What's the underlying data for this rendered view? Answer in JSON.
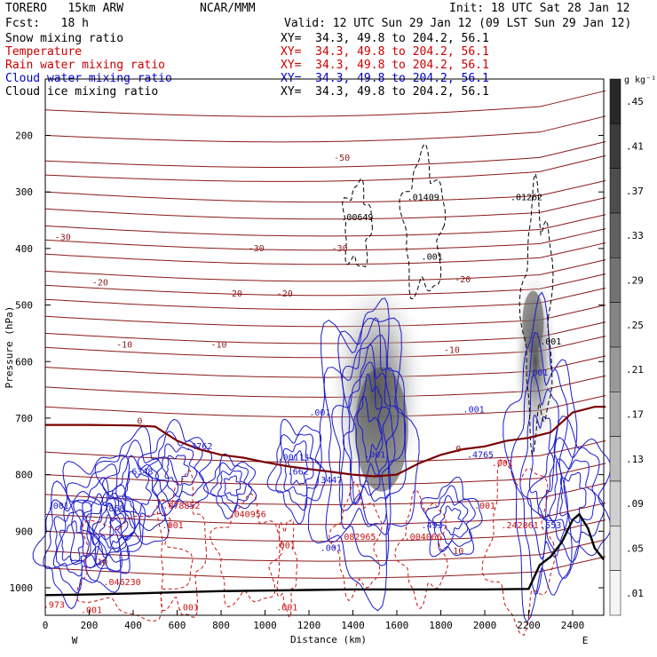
{
  "header": {
    "model": "TORERO   15km ARW",
    "center": "NCAR/MMM",
    "init": "Init: 18 UTC Sat 28 Jan 12",
    "fcst": "Fcst:   18 h",
    "valid": "Valid: 12 UTC Sun 29 Jan 12 (09 LST Sun 29 Jan 12)"
  },
  "legend": [
    {
      "name": "Snow mixing ratio",
      "xy": "XY=  34.3, 49.8 to 204.2, 56.1",
      "color": "#000000"
    },
    {
      "name": "Temperature",
      "xy": "XY=  34.3, 49.8 to 204.2, 56.1",
      "color": "#cc0000"
    },
    {
      "name": "Rain water mixing ratio",
      "xy": "XY=  34.3, 49.8 to 204.2, 56.1",
      "color": "#cc0000"
    },
    {
      "name": "Cloud water mixing ratio",
      "xy": "XY=  34.3, 49.8 to 204.2, 56.1",
      "color": "#0000cc"
    },
    {
      "name": "Cloud ice mixing ratio",
      "xy": "XY=  34.3, 49.8 to 204.2, 56.1",
      "color": "#000000"
    }
  ],
  "colorbar": {
    "unit": "g kg⁻¹",
    "levels": [
      ".45",
      ".41",
      ".37",
      ".33",
      ".29",
      ".25",
      ".21",
      ".17",
      ".13",
      ".09",
      ".05",
      ".01"
    ]
  },
  "chart_data": {
    "type": "contour",
    "xlabel": "Distance (km)",
    "ylabel": "Pressure (hPa)",
    "xlim": [
      0,
      2550
    ],
    "ylim": [
      1050,
      100
    ],
    "x_ticks": [
      0,
      200,
      400,
      600,
      800,
      1000,
      1200,
      1400,
      1600,
      1800,
      2000,
      2200,
      2400
    ],
    "y_ticks": [
      200,
      300,
      400,
      500,
      600,
      700,
      800,
      900,
      1000
    ],
    "x_end_labels": [
      "W",
      "E"
    ],
    "temperature_isotherms": [
      {
        "label": "-50",
        "x": 1350,
        "p": 245
      },
      {
        "label": "-30",
        "x": 80,
        "p": 385
      },
      {
        "label": "-30",
        "x": 960,
        "p": 405
      },
      {
        "label": "-30",
        "x": 1340,
        "p": 405
      },
      {
        "label": "-20",
        "x": 250,
        "p": 465
      },
      {
        "label": "-20",
        "x": 860,
        "p": 485
      },
      {
        "label": "-20",
        "x": 1090,
        "p": 485
      },
      {
        "label": "-20",
        "x": 1900,
        "p": 460
      },
      {
        "label": "-10",
        "x": 360,
        "p": 575
      },
      {
        "label": "-10",
        "x": 790,
        "p": 575
      },
      {
        "label": "-10",
        "x": 1850,
        "p": 585
      },
      {
        "label": "0",
        "x": 430,
        "p": 710
      },
      {
        "label": "0",
        "x": 1880,
        "p": 760
      },
      {
        "label": "10",
        "x": 260,
        "p": 960
      },
      {
        "label": "10",
        "x": 1880,
        "p": 940
      }
    ],
    "cloud_ice_maxima": [
      {
        "label": ".00649",
        "x": 1420,
        "p": 350
      },
      {
        "label": ".01409",
        "x": 1720,
        "p": 315
      },
      {
        "label": ".01262",
        "x": 2190,
        "p": 315
      },
      {
        "label": ".001",
        "x": 1760,
        "p": 420
      },
      {
        "label": ".001",
        "x": 2300,
        "p": 570
      }
    ],
    "cloud_water_maxima": [
      {
        "label": ".4762",
        "x": 700,
        "p": 755
      },
      {
        "label": ".00111",
        "x": 1130,
        "p": 775
      },
      {
        "label": ".662",
        "x": 1150,
        "p": 800
      },
      {
        "label": ".6348",
        "x": 430,
        "p": 800
      },
      {
        "label": ".3447",
        "x": 1290,
        "p": 815
      },
      {
        "label": ".4765",
        "x": 1980,
        "p": 770
      },
      {
        "label": ".553",
        "x": 2300,
        "p": 895
      },
      {
        "label": ".493",
        "x": 1760,
        "p": 895
      },
      {
        "label": ".7868",
        "x": 300,
        "p": 865
      },
      {
        "label": ".001",
        "x": 1250,
        "p": 695
      },
      {
        "label": ".001",
        "x": 1500,
        "p": 770
      },
      {
        "label": ".001",
        "x": 1950,
        "p": 690
      },
      {
        "label": ".001",
        "x": 2240,
        "p": 625
      },
      {
        "label": ".001",
        "x": 1300,
        "p": 935
      },
      {
        "label": ".001",
        "x": 60,
        "p": 860
      }
    ],
    "rain_water_maxima": [
      {
        "label": ".078852",
        "x": 620,
        "p": 860
      },
      {
        "label": ".040956",
        "x": 920,
        "p": 875
      },
      {
        "label": ".082965",
        "x": 1420,
        "p": 915
      },
      {
        "label": ".004066",
        "x": 1720,
        "p": 915
      },
      {
        "label": ".242861",
        "x": 2160,
        "p": 895
      },
      {
        "label": ".046230",
        "x": 350,
        "p": 995
      },
      {
        "label": ".001",
        "x": 2000,
        "p": 860
      },
      {
        "label": ".001",
        "x": 1090,
        "p": 930
      },
      {
        "label": ".001",
        "x": 580,
        "p": 895
      },
      {
        "label": ".001",
        "x": 2080,
        "p": 785
      },
      {
        "label": ".001",
        "x": 210,
        "p": 1045
      },
      {
        "label": ".001",
        "x": 650,
        "p": 1040
      },
      {
        "label": ".001",
        "x": 1100,
        "p": 1040
      },
      {
        "label": ".973",
        "x": 40,
        "p": 1035
      }
    ],
    "snow_regions": [
      {
        "x": 1510,
        "p": 650,
        "max": 0.29
      },
      {
        "x": 2230,
        "p": 600,
        "max": 0.25
      }
    ],
    "terrain": [
      [
        0,
        1013
      ],
      [
        200,
        1012
      ],
      [
        400,
        1010
      ],
      [
        600,
        1008
      ],
      [
        800,
        1006
      ],
      [
        1000,
        1005
      ],
      [
        1200,
        1004
      ],
      [
        1400,
        1003
      ],
      [
        1600,
        1003
      ],
      [
        1800,
        1003
      ],
      [
        2000,
        1003
      ],
      [
        2200,
        1002
      ],
      [
        2250,
        960
      ],
      [
        2300,
        945
      ],
      [
        2350,
        920
      ],
      [
        2400,
        880
      ],
      [
        2430,
        870
      ],
      [
        2470,
        895
      ],
      [
        2500,
        930
      ],
      [
        2550,
        950
      ]
    ],
    "freezing_level": [
      [
        0,
        712
      ],
      [
        200,
        712
      ],
      [
        400,
        713
      ],
      [
        500,
        715
      ],
      [
        600,
        740
      ],
      [
        700,
        755
      ],
      [
        800,
        765
      ],
      [
        900,
        770
      ],
      [
        1000,
        778
      ],
      [
        1100,
        785
      ],
      [
        1200,
        790
      ],
      [
        1300,
        795
      ],
      [
        1400,
        800
      ],
      [
        1500,
        803
      ],
      [
        1600,
        800
      ],
      [
        1700,
        780
      ],
      [
        1800,
        765
      ],
      [
        1900,
        755
      ],
      [
        2000,
        750
      ],
      [
        2100,
        740
      ],
      [
        2200,
        735
      ],
      [
        2300,
        725
      ],
      [
        2400,
        690
      ],
      [
        2500,
        680
      ],
      [
        2550,
        680
      ]
    ]
  }
}
